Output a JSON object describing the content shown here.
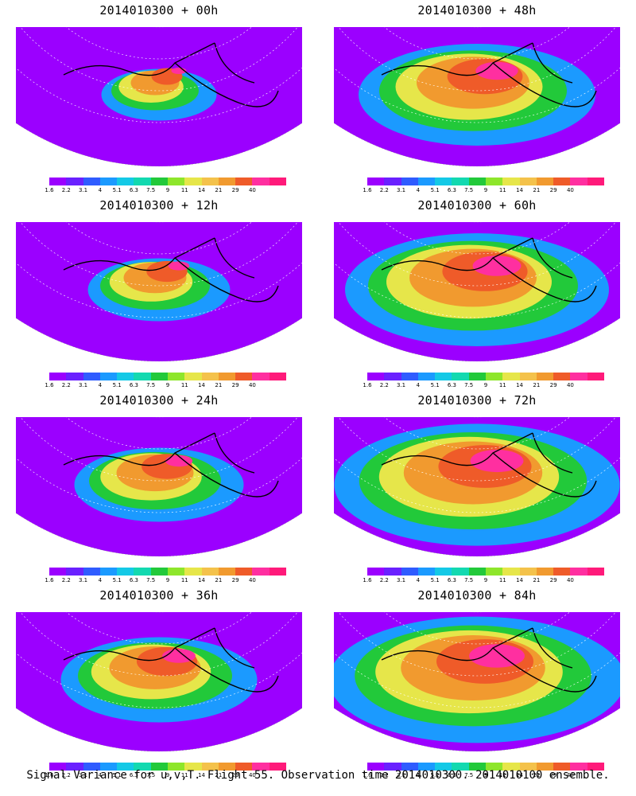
{
  "panels": [
    {
      "title": "2014010300 + 00h",
      "intensity": 0.25
    },
    {
      "title": "2014010300 + 48h",
      "intensity": 0.7
    },
    {
      "title": "2014010300 + 12h",
      "intensity": 0.35
    },
    {
      "title": "2014010300 + 60h",
      "intensity": 0.8
    },
    {
      "title": "2014010300 + 24h",
      "intensity": 0.45
    },
    {
      "title": "2014010300 + 72h",
      "intensity": 0.88
    },
    {
      "title": "2014010300 + 36h",
      "intensity": 0.55
    },
    {
      "title": "2014010300 + 84h",
      "intensity": 0.92
    }
  ],
  "colorbar": {
    "labels": [
      "1.6",
      "2.2",
      "3.1",
      "4",
      "5.1",
      "6.3",
      "7.5",
      "9",
      "11",
      "14",
      "21",
      "29",
      "40"
    ],
    "colors": [
      "#9b00ff",
      "#6a21ff",
      "#2f5cff",
      "#1b9aff",
      "#14c9e6",
      "#13d9b0",
      "#22c93a",
      "#8ee62b",
      "#e6e64a",
      "#f4c24b",
      "#f19a2f",
      "#ef5b29",
      "#ff2fa0",
      "#ff1a7a"
    ]
  },
  "footer": "Signal Variance for u,v,T. Flight 55. Observation time 2014010300. 2014010100 ensemble."
}
